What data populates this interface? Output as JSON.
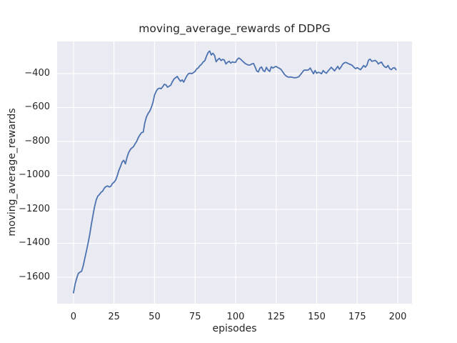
{
  "chart_data": {
    "type": "line",
    "title": "moving_average_rewards of DDPG",
    "xlabel": "episodes",
    "ylabel": "moving_average_rewards",
    "x_ticks": [
      0,
      25,
      50,
      75,
      100,
      125,
      150,
      175,
      200
    ],
    "x_tick_labels": [
      "0",
      "25",
      "50",
      "75",
      "100",
      "125",
      "150",
      "175",
      "200"
    ],
    "y_ticks": [
      -400,
      -600,
      -800,
      -1000,
      -1200,
      -1400,
      -1600
    ],
    "y_tick_labels": [
      "−400",
      "−600",
      "−800",
      "−1000",
      "−1200",
      "−1400",
      "−1600"
    ],
    "xlim": [
      -10.1,
      208.8
    ],
    "ylim": [
      -1756,
      -210.5
    ],
    "grid": true,
    "legend": "none",
    "colors": {
      "line": "#4c72b0",
      "plot_background": "#eaeaf2",
      "gridline": "#ffffff",
      "text": "#262626",
      "figure_background": "#ffffff"
    },
    "series": [
      {
        "name": "moving_average_rewards",
        "x_start": 0,
        "x_step": 1,
        "y": [
          -1692,
          -1640,
          -1605,
          -1578,
          -1570,
          -1565,
          -1532,
          -1488,
          -1445,
          -1398,
          -1350,
          -1290,
          -1235,
          -1185,
          -1145,
          -1122,
          -1112,
          -1100,
          -1092,
          -1075,
          -1066,
          -1062,
          -1068,
          -1064,
          -1048,
          -1040,
          -1027,
          -1002,
          -970,
          -947,
          -921,
          -911,
          -932,
          -893,
          -866,
          -848,
          -838,
          -831,
          -814,
          -799,
          -777,
          -761,
          -748,
          -745,
          -690,
          -655,
          -635,
          -622,
          -600,
          -570,
          -525,
          -505,
          -490,
          -486,
          -489,
          -478,
          -463,
          -466,
          -480,
          -474,
          -468,
          -448,
          -432,
          -424,
          -417,
          -432,
          -445,
          -437,
          -450,
          -430,
          -412,
          -400,
          -398,
          -400,
          -394,
          -387,
          -372,
          -366,
          -353,
          -345,
          -331,
          -324,
          -298,
          -276,
          -267,
          -290,
          -280,
          -293,
          -330,
          -318,
          -310,
          -323,
          -316,
          -320,
          -343,
          -334,
          -327,
          -338,
          -331,
          -334,
          -333,
          -316,
          -308,
          -314,
          -324,
          -332,
          -341,
          -346,
          -350,
          -349,
          -343,
          -340,
          -360,
          -384,
          -390,
          -368,
          -361,
          -382,
          -388,
          -363,
          -379,
          -387,
          -360,
          -367,
          -361,
          -358,
          -364,
          -369,
          -375,
          -389,
          -403,
          -413,
          -419,
          -421,
          -420,
          -422,
          -424,
          -425,
          -422,
          -418,
          -406,
          -394,
          -381,
          -379,
          -380,
          -378,
          -367,
          -384,
          -401,
          -382,
          -398,
          -392,
          -395,
          -401,
          -382,
          -392,
          -398,
          -385,
          -374,
          -363,
          -373,
          -384,
          -371,
          -357,
          -374,
          -361,
          -345,
          -337,
          -334,
          -338,
          -343,
          -347,
          -352,
          -363,
          -371,
          -365,
          -371,
          -377,
          -365,
          -352,
          -362,
          -350,
          -320,
          -315,
          -328,
          -325,
          -322,
          -329,
          -343,
          -336,
          -332,
          -350,
          -360,
          -364,
          -352,
          -371,
          -377,
          -367,
          -365,
          -377
        ]
      }
    ]
  }
}
